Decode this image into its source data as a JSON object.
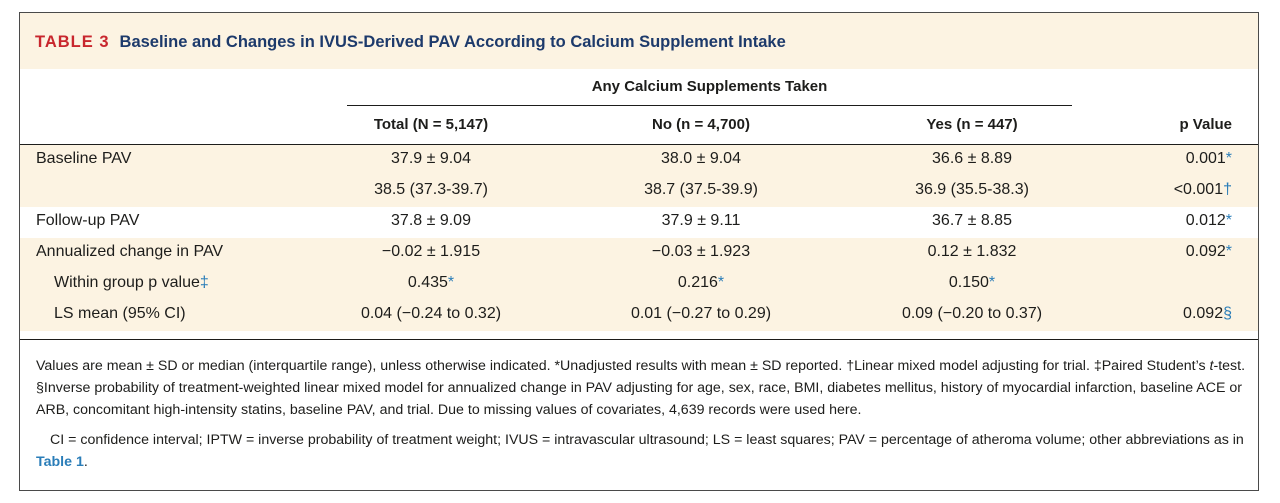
{
  "title": {
    "label": "TABLE 3",
    "text": "Baseline and Changes in IVUS-Derived PAV According to Calcium Supplement Intake"
  },
  "group_header": "Any Calcium Supplements Taken",
  "columns": [
    "Total (N = 5,147)",
    "No (n = 4,700)",
    "Yes (n = 447)",
    "p Value"
  ],
  "rows": [
    {
      "label": "Baseline PAV",
      "total": "37.9 ± 9.04",
      "no": "38.0 ± 9.04",
      "yes": "36.6 ± 8.89",
      "p": "0.001",
      "p_mark": "*"
    },
    {
      "label": "",
      "total": "38.5 (37.3-39.7)",
      "no": "38.7 (37.5-39.9)",
      "yes": "36.9 (35.5-38.3)",
      "p": "<0.001",
      "p_mark": "†"
    },
    {
      "label": "Follow-up PAV",
      "total": "37.8 ± 9.09",
      "no": "37.9 ± 9.11",
      "yes": "36.7 ± 8.85",
      "p": "0.012",
      "p_mark": "*"
    },
    {
      "label": "Annualized change in PAV",
      "total": "−0.02 ± 1.915",
      "no": "−0.03 ± 1.923",
      "yes": "0.12 ± 1.832",
      "p": "0.092",
      "p_mark": "*"
    },
    {
      "label": "Within group p value",
      "label_mark": "‡",
      "total": "0.435",
      "total_mark": "*",
      "no": "0.216",
      "no_mark": "*",
      "yes": "0.150",
      "yes_mark": "*",
      "p": "",
      "p_mark": ""
    },
    {
      "label": "LS mean (95% CI)",
      "total": "0.04 (−0.24 to 0.32)",
      "no": "0.01 (−0.27 to 0.29)",
      "yes": "0.09 (−0.20 to 0.37)",
      "p": "0.092",
      "p_mark": "§"
    }
  ],
  "footnotes": {
    "note1": "Values are mean ± SD or median (interquartile range), unless otherwise indicated. *Unadjusted results with mean ± SD reported. †Linear mixed model adjusting for trial. ‡Paired Student’s",
    "note1_italic": "t",
    "note1_rest": "-test. §Inverse probability of treatment-weighted linear mixed model for annualized change in PAV adjusting for age, sex, race, BMI, diabetes mellitus, history of myocardial infarction, baseline ACE or ARB, concomitant high-intensity statins, baseline PAV, and trial. Due to missing values of covariates, 4,639 records were used here.",
    "note2": "CI = confidence interval; IPTW = inverse probability of treatment weight; IVUS = intravascular ultrasound; LS = least squares; PAV = percentage of atheroma volume; other abbreviations as in",
    "note2_link": "Table 1",
    "note2_end": "."
  },
  "colors": {
    "header_bg": "#fcf3e2",
    "label_red": "#c8262d",
    "title_navy": "#1d3a6b",
    "marker_blue": "#2a7db8"
  }
}
